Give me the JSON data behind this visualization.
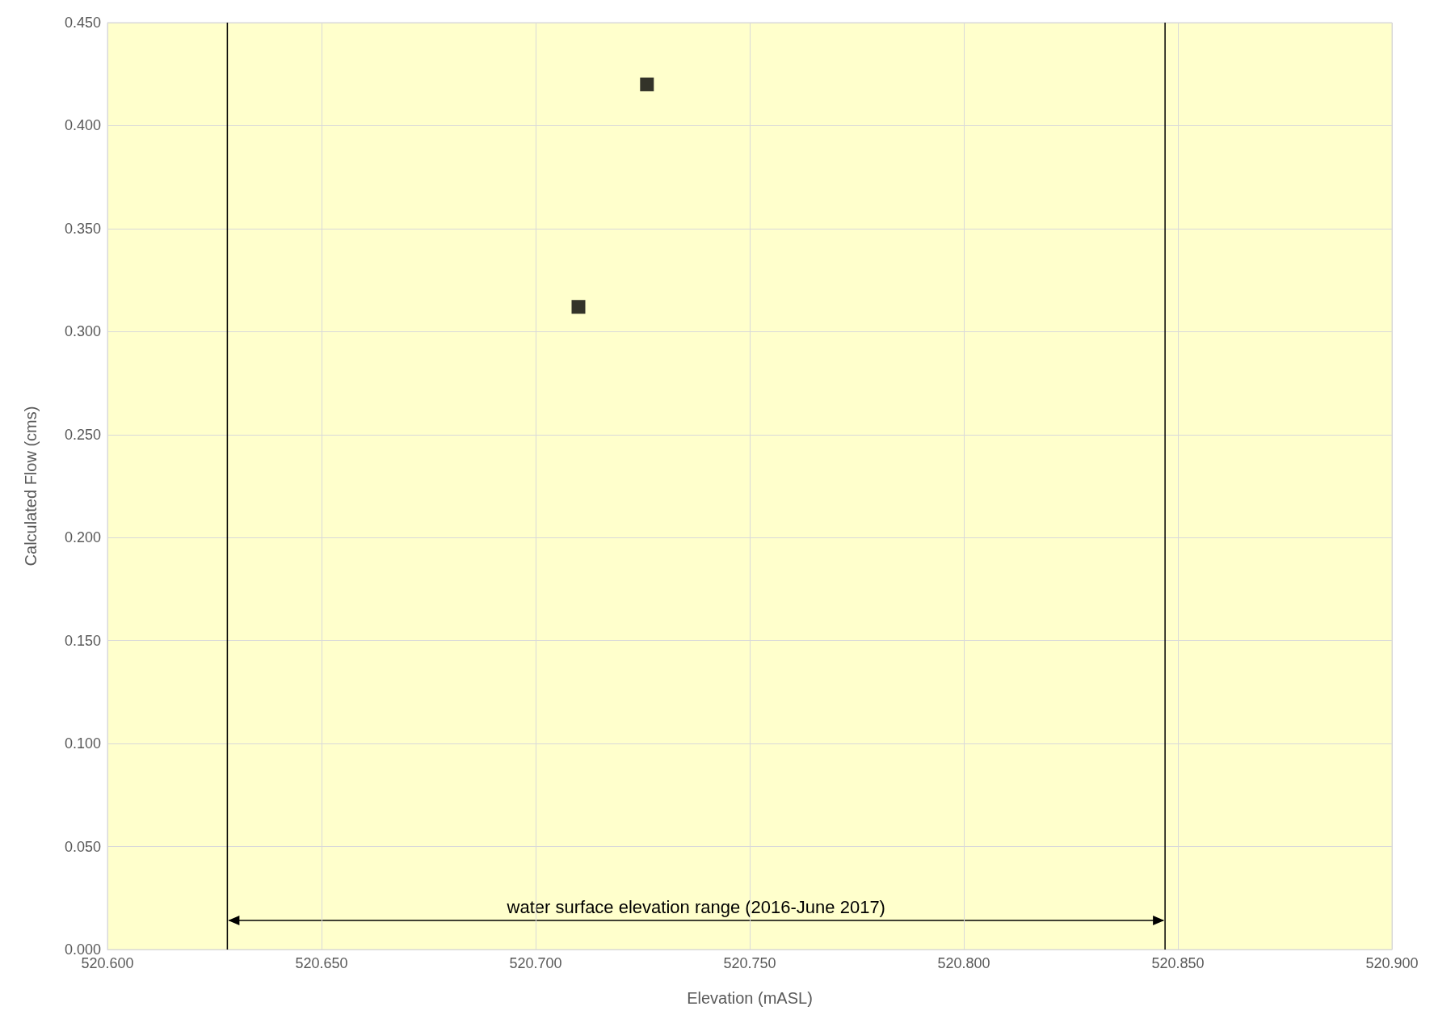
{
  "chart_data": {
    "type": "scatter",
    "xlabel": "Elevation (mASL)",
    "ylabel": "Calculated Flow (cms)",
    "x": [
      520.71,
      520.726
    ],
    "values": [
      0.312,
      0.42
    ],
    "color": "#000000",
    "marker": "square",
    "xlim": [
      520.6,
      520.9
    ],
    "xticks": [
      {
        "value": 520.6,
        "label": "520.600"
      },
      {
        "value": 520.65,
        "label": "520.650"
      },
      {
        "value": 520.7,
        "label": "520.700"
      },
      {
        "value": 520.75,
        "label": "520.750"
      },
      {
        "value": 520.8,
        "label": "520.800"
      },
      {
        "value": 520.85,
        "label": "520.850"
      },
      {
        "value": 520.9,
        "label": "520.900"
      }
    ],
    "ylim": [
      0,
      0.45
    ],
    "yticks": [
      {
        "value": 0,
        "label": "0.000"
      },
      {
        "value": 0.05,
        "label": "0.050"
      },
      {
        "value": 0.1,
        "label": "0.100"
      },
      {
        "value": 0.15,
        "label": "0.150"
      },
      {
        "value": 0.2,
        "label": "0.200"
      },
      {
        "value": 0.25,
        "label": "0.250"
      },
      {
        "value": 0.3,
        "label": "0.300"
      },
      {
        "value": 0.35,
        "label": "0.350"
      },
      {
        "value": 0.4,
        "label": "0.400"
      },
      {
        "value": 0.45,
        "label": "0.450"
      }
    ],
    "grid": true,
    "ref_lines": [
      {
        "axis": "x",
        "value": 520.628,
        "color": "#000000"
      },
      {
        "axis": "x",
        "value": 520.847,
        "color": "#000000"
      }
    ],
    "annotations": [
      "water surface elevation range (2016-June 2017)"
    ]
  }
}
